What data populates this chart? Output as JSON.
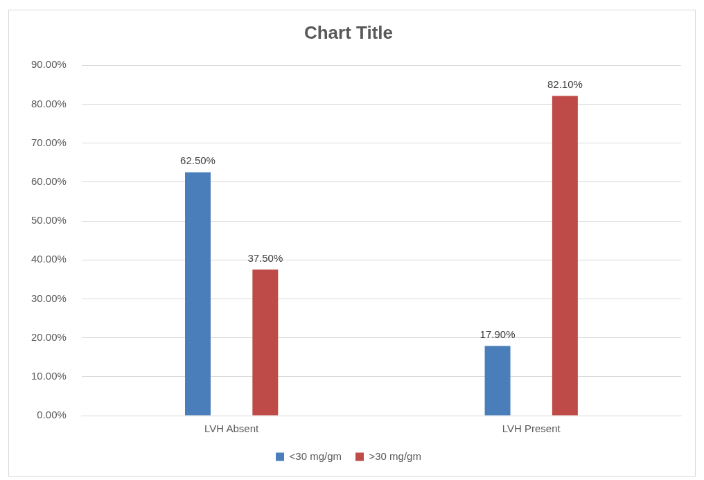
{
  "chart_data": {
    "type": "bar",
    "title": "Chart Title",
    "categories": [
      "LVH Absent",
      "LVH Present"
    ],
    "series": [
      {
        "name": "<30 mg/gm",
        "color": "#4a7ebb",
        "values": [
          62.5,
          17.9
        ],
        "value_labels": [
          "62.50%",
          "17.90%"
        ]
      },
      {
        "name": ">30 mg/gm",
        "color": "#be4b48",
        "values": [
          37.5,
          82.1
        ],
        "value_labels": [
          "37.50%",
          "82.10%"
        ]
      }
    ],
    "ylim": [
      0,
      90
    ],
    "yticks": [
      {
        "value": 0,
        "label": "0.00%"
      },
      {
        "value": 10,
        "label": "10.00%"
      },
      {
        "value": 20,
        "label": "20.00%"
      },
      {
        "value": 30,
        "label": "30.00%"
      },
      {
        "value": 40,
        "label": "40.00%"
      },
      {
        "value": 50,
        "label": "50.00%"
      },
      {
        "value": 60,
        "label": "60.00%"
      },
      {
        "value": 70,
        "label": "70.00%"
      },
      {
        "value": 80,
        "label": "80.00%"
      },
      {
        "value": 90,
        "label": "90.00%"
      }
    ],
    "grid": "y",
    "legend": "bottom"
  }
}
